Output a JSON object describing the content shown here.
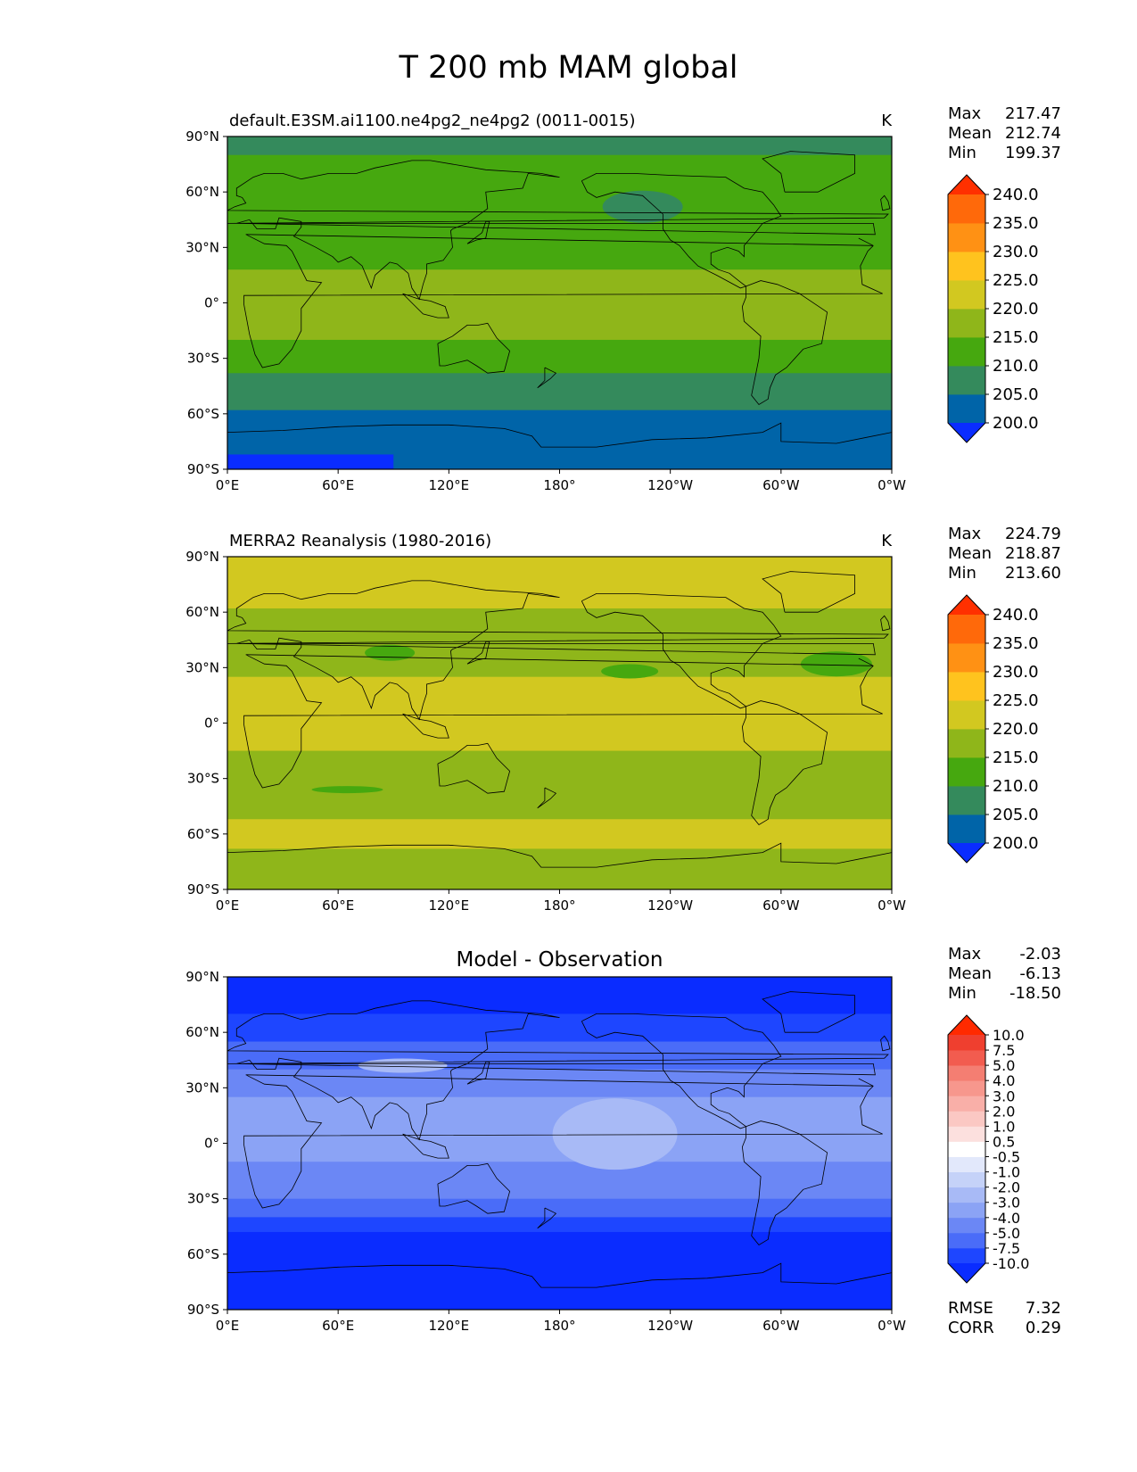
{
  "figure": {
    "title": "T 200 mb MAM global"
  },
  "chart_data": [
    {
      "type": "contourf-map",
      "panel": "test",
      "title_left": "default.E3SM.ai1100.ne4pg2_ne4pg2 (0011-0015)",
      "title_right": "K",
      "title_center": "",
      "units": "K",
      "stats": [
        {
          "label": "Max",
          "value": "217.47"
        },
        {
          "label": "Mean",
          "value": "212.74"
        },
        {
          "label": "Min",
          "value": "199.37"
        }
      ],
      "colorbar": {
        "levels": [
          200.0,
          205.0,
          210.0,
          215.0,
          220.0,
          225.0,
          230.0,
          235.0,
          240.0
        ],
        "tick_labels": [
          "200.0",
          "205.0",
          "210.0",
          "215.0",
          "220.0",
          "225.0",
          "230.0",
          "235.0",
          "240.0"
        ],
        "colors": [
          "#0a2cff",
          "#0064a8",
          "#348a5c",
          "#46a80f",
          "#8fb61a",
          "#d2c820",
          "#ffc31e",
          "#ff9114",
          "#ff690a",
          "#ff3000"
        ],
        "extend": "both"
      },
      "xticks": [
        "0°E",
        "60°E",
        "120°E",
        "180°",
        "120°W",
        "60°W",
        "0°W"
      ],
      "yticks": [
        "90°N",
        "60°N",
        "30°N",
        "0°",
        "30°S",
        "60°S",
        "90°S"
      ],
      "lon_range": [
        0,
        360
      ],
      "lat_range": [
        -90,
        90
      ],
      "field_bands": [
        {
          "lat_from": 90,
          "lat_to": 80,
          "bin": 2
        },
        {
          "lat_from": 80,
          "lat_to": 18,
          "bin": 3
        },
        {
          "lat_from": 18,
          "lat_to": -20,
          "bin": 4
        },
        {
          "lat_from": -20,
          "lat_to": -38,
          "bin": 3
        },
        {
          "lat_from": -38,
          "lat_to": -58,
          "bin": 2
        },
        {
          "lat_from": -58,
          "lat_to": -90,
          "bin": 1
        }
      ]
    },
    {
      "type": "contourf-map",
      "panel": "reference",
      "title_left": "MERRA2 Reanalysis (1980-2016)",
      "title_right": "K",
      "title_center": "",
      "units": "K",
      "stats": [
        {
          "label": "Max",
          "value": "224.79"
        },
        {
          "label": "Mean",
          "value": "218.87"
        },
        {
          "label": "Min",
          "value": "213.60"
        }
      ],
      "colorbar": {
        "levels": [
          200.0,
          205.0,
          210.0,
          215.0,
          220.0,
          225.0,
          230.0,
          235.0,
          240.0
        ],
        "tick_labels": [
          "200.0",
          "205.0",
          "210.0",
          "215.0",
          "220.0",
          "225.0",
          "230.0",
          "235.0",
          "240.0"
        ],
        "colors": [
          "#0a2cff",
          "#0064a8",
          "#348a5c",
          "#46a80f",
          "#8fb61a",
          "#d2c820",
          "#ffc31e",
          "#ff9114",
          "#ff690a",
          "#ff3000"
        ],
        "extend": "both"
      },
      "xticks": [
        "0°E",
        "60°E",
        "120°E",
        "180°",
        "120°W",
        "60°W",
        "0°W"
      ],
      "yticks": [
        "90°N",
        "60°N",
        "30°N",
        "0°",
        "30°S",
        "60°S",
        "90°S"
      ],
      "lon_range": [
        0,
        360
      ],
      "lat_range": [
        -90,
        90
      ],
      "field_bands": [
        {
          "lat_from": 90,
          "lat_to": 62,
          "bin": 5
        },
        {
          "lat_from": 62,
          "lat_to": 25,
          "bin": 4
        },
        {
          "lat_from": 25,
          "lat_to": -15,
          "bin": 5
        },
        {
          "lat_from": -15,
          "lat_to": -52,
          "bin": 4
        },
        {
          "lat_from": -52,
          "lat_to": -68,
          "bin": 5
        },
        {
          "lat_from": -68,
          "lat_to": -90,
          "bin": 4
        }
      ]
    },
    {
      "type": "contourf-map",
      "panel": "difference",
      "title_left": "",
      "title_right": "",
      "title_center": "Model - Observation",
      "units": "K",
      "stats": [
        {
          "label": "Max",
          "value": "-2.03"
        },
        {
          "label": "Mean",
          "value": "-6.13"
        },
        {
          "label": "Min",
          "value": "-18.50"
        }
      ],
      "colorbar": {
        "levels": [
          -10.0,
          -7.5,
          -5.0,
          -4.0,
          -3.0,
          -2.0,
          -1.0,
          -0.5,
          0.5,
          1.0,
          2.0,
          3.0,
          4.0,
          5.0,
          7.5,
          10.0
        ],
        "tick_labels": [
          "-10.0",
          "-7.5",
          "-5.0",
          "-4.0",
          "-3.0",
          "-2.0",
          "-1.0",
          "-0.5",
          "0.5",
          "1.0",
          "2.0",
          "3.0",
          "4.0",
          "5.0",
          "7.5",
          "10.0"
        ],
        "colors": [
          "#0a2cff",
          "#1e46ff",
          "#4a6cf8",
          "#6b87f5",
          "#8ba3f5",
          "#a8baf6",
          "#c5d2f8",
          "#e2e8fb",
          "#ffffff",
          "#fce0de",
          "#fbc8c3",
          "#f9afa8",
          "#f7978d",
          "#f47e72",
          "#f25c4f",
          "#ef3f2f",
          "#ff2a00"
        ],
        "extend": "both"
      },
      "xticks": [
        "0°E",
        "60°E",
        "120°E",
        "180°",
        "120°W",
        "60°W",
        "0°W"
      ],
      "yticks": [
        "90°N",
        "60°N",
        "30°N",
        "0°",
        "30°S",
        "60°S",
        "90°S"
      ],
      "lon_range": [
        0,
        360
      ],
      "lat_range": [
        -90,
        90
      ],
      "field_bands": [
        {
          "lat_from": 90,
          "lat_to": 70,
          "bin": 0
        },
        {
          "lat_from": 70,
          "lat_to": 55,
          "bin": 1
        },
        {
          "lat_from": 55,
          "lat_to": 40,
          "bin": 2
        },
        {
          "lat_from": 40,
          "lat_to": 25,
          "bin": 3
        },
        {
          "lat_from": 25,
          "lat_to": -10,
          "bin": 4
        },
        {
          "lat_from": -10,
          "lat_to": -30,
          "bin": 3
        },
        {
          "lat_from": -30,
          "lat_to": -40,
          "bin": 2
        },
        {
          "lat_from": -40,
          "lat_to": -48,
          "bin": 1
        },
        {
          "lat_from": -48,
          "lat_to": -90,
          "bin": 0
        }
      ],
      "extra_stats": [
        {
          "label": "RMSE",
          "value": "7.32"
        },
        {
          "label": "CORR",
          "value": "0.29"
        }
      ]
    }
  ]
}
